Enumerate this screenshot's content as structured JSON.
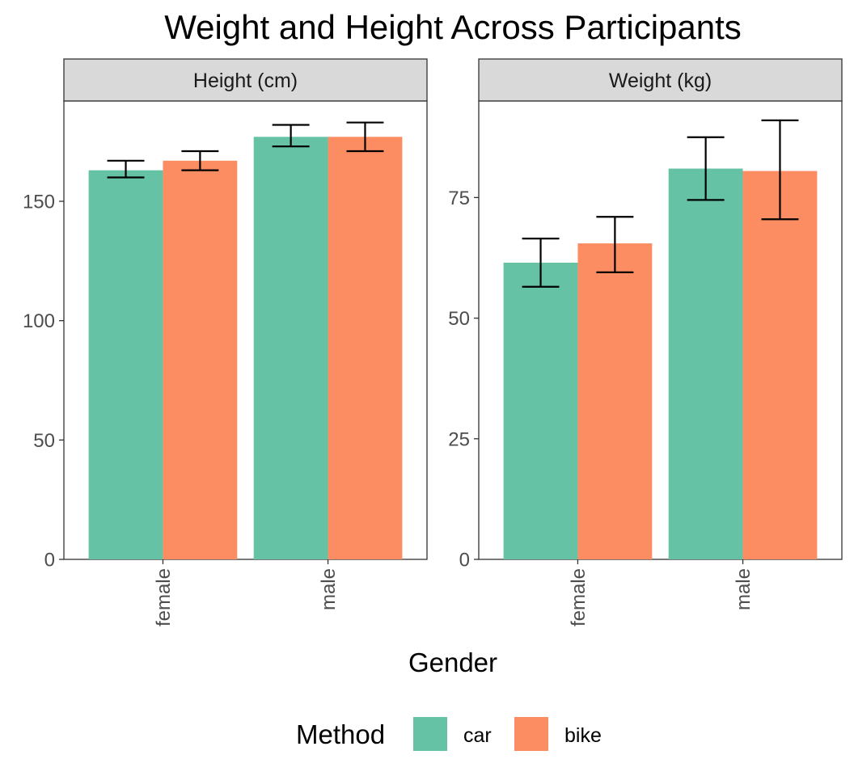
{
  "chart_data": {
    "type": "bar",
    "title": "Weight and Height Across Participants",
    "xlabel": "Gender",
    "ylabel": "",
    "categories": [
      "female",
      "male"
    ],
    "legend": {
      "title": "Method",
      "position": "bottom",
      "entries": [
        {
          "name": "car",
          "color": "#66C2A5"
        },
        {
          "name": "bike",
          "color": "#FC8D62"
        }
      ]
    },
    "grid": false,
    "facets": [
      {
        "label": "Height (cm)",
        "ylim": [
          0,
          192
        ],
        "yticks": [
          0,
          50,
          100,
          150
        ],
        "series": [
          {
            "name": "car",
            "values": [
              163,
              177
            ],
            "error_low": [
              160,
              173
            ],
            "error_high": [
              167,
              182
            ]
          },
          {
            "name": "bike",
            "values": [
              167,
              177
            ],
            "error_low": [
              163,
              171
            ],
            "error_high": [
              171,
              183
            ]
          }
        ]
      },
      {
        "label": "Weight (kg)",
        "ylim": [
          0,
          95
        ],
        "yticks": [
          0,
          25,
          50,
          75
        ],
        "series": [
          {
            "name": "car",
            "values": [
              61.5,
              81
            ],
            "error_low": [
              56.5,
              74.5
            ],
            "error_high": [
              66.5,
              87.5
            ]
          },
          {
            "name": "bike",
            "values": [
              65.5,
              80.5
            ],
            "error_low": [
              59.5,
              70.5
            ],
            "error_high": [
              71,
              91
            ]
          }
        ]
      }
    ]
  }
}
